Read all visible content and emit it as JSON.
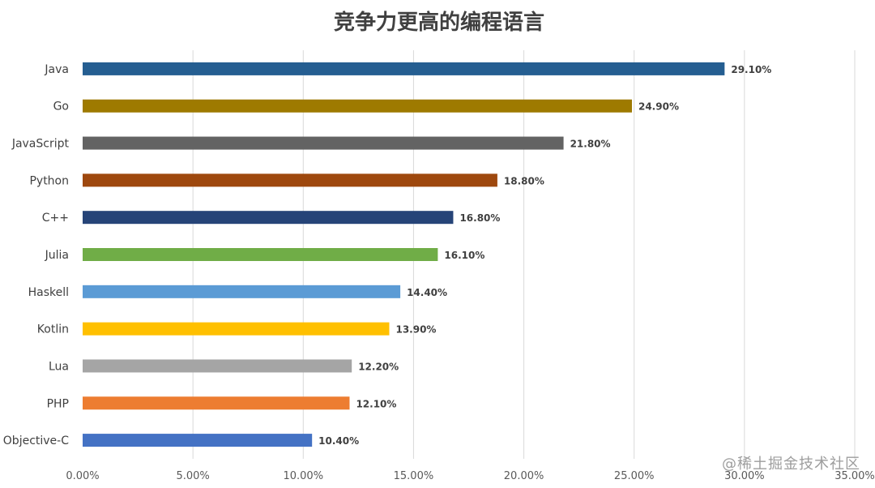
{
  "chart_data": {
    "type": "bar",
    "orientation": "horizontal",
    "title": "竞争力更高的编程语言",
    "categories": [
      "Java",
      "Go",
      "JavaScript",
      "Python",
      "C++",
      "Julia",
      "Haskell",
      "Kotlin",
      "Lua",
      "PHP",
      "Objective-C"
    ],
    "values": [
      29.1,
      24.9,
      21.8,
      18.8,
      16.8,
      16.1,
      14.4,
      13.9,
      12.2,
      12.1,
      10.4
    ],
    "value_labels": [
      "29.10%",
      "24.90%",
      "21.80%",
      "18.80%",
      "16.80%",
      "16.10%",
      "14.40%",
      "13.90%",
      "12.20%",
      "12.10%",
      "10.40%"
    ],
    "colors": [
      "#255e91",
      "#9e7a00",
      "#636363",
      "#9e480e",
      "#264478",
      "#70ad47",
      "#5b9bd5",
      "#ffc000",
      "#a5a5a5",
      "#ed7d31",
      "#4472c4"
    ],
    "xlim": [
      0,
      35
    ],
    "xticks": [
      0,
      5,
      10,
      15,
      20,
      25,
      30,
      35
    ],
    "xtick_labels": [
      "0.00%",
      "5.00%",
      "10.00%",
      "15.00%",
      "20.00%",
      "25.00%",
      "30.00%",
      "35.00%"
    ],
    "xlabel": "",
    "ylabel": "",
    "grid": "vertical",
    "legend": "none"
  },
  "watermark": "@稀土掘金技术社区"
}
